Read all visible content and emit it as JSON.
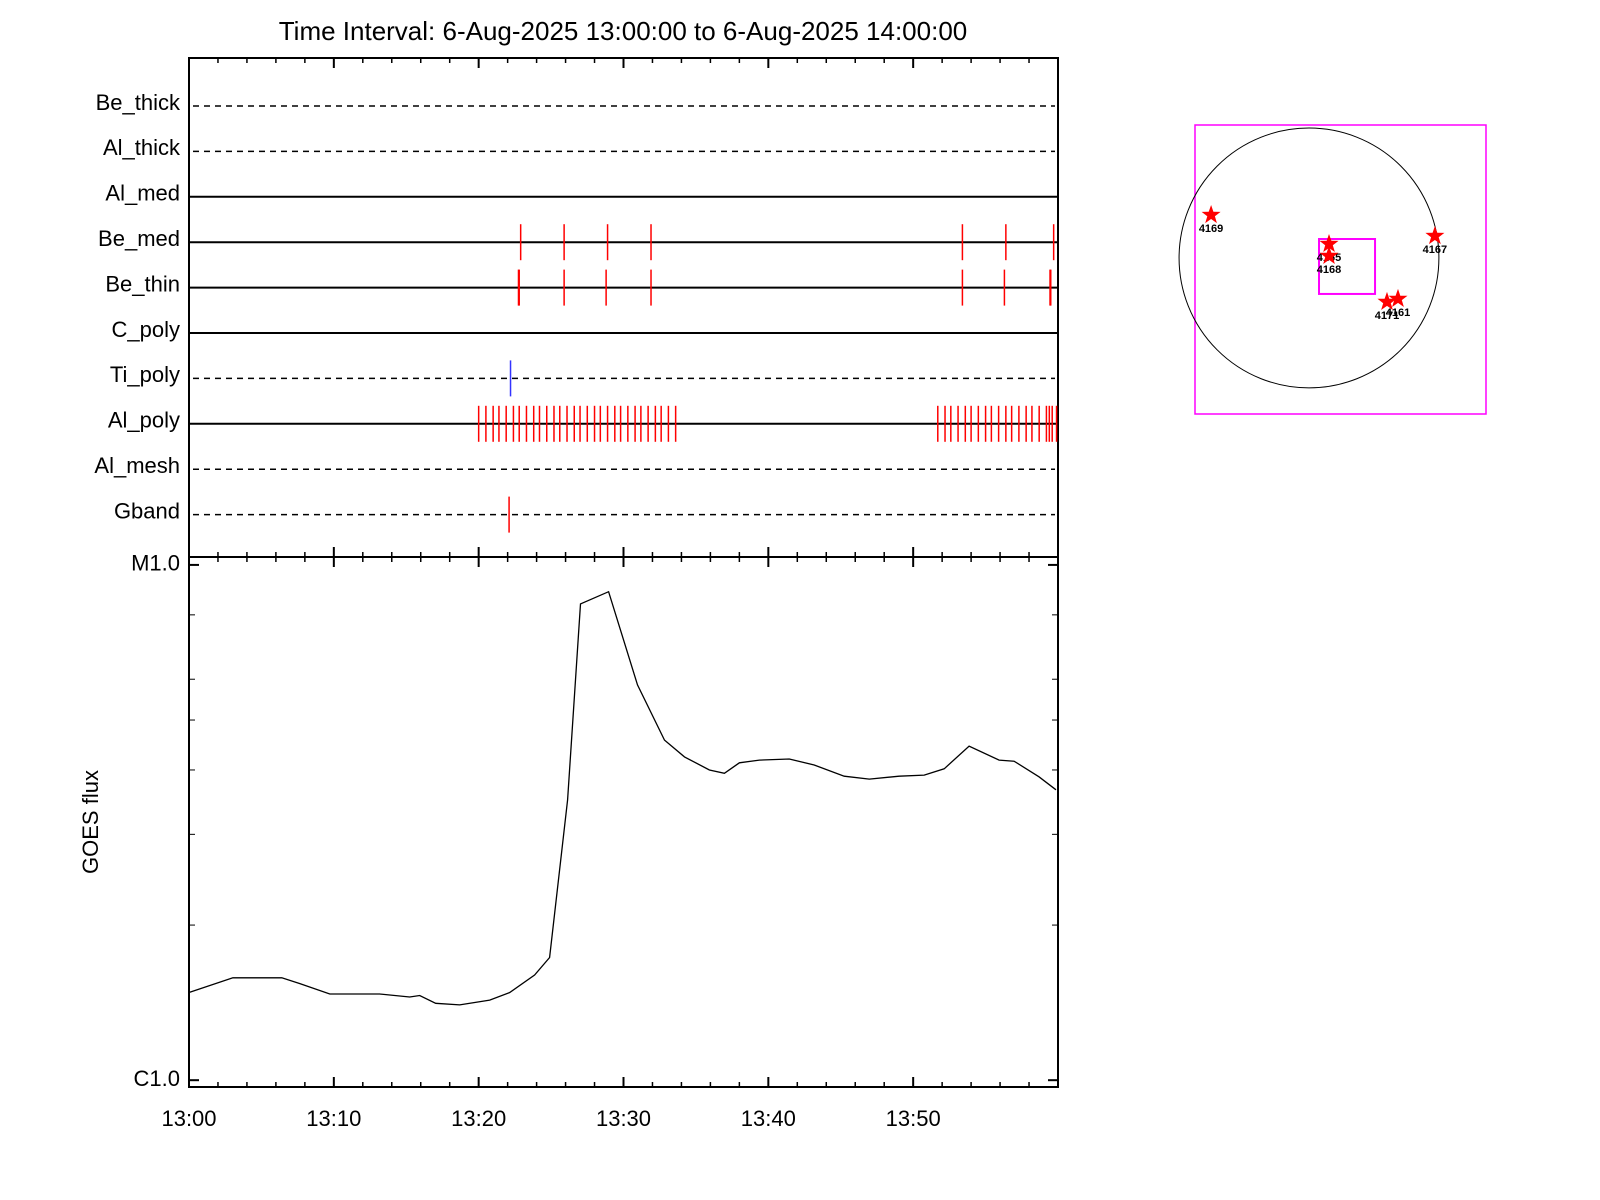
{
  "chart_data": [
    {
      "type": "timeline",
      "title": "Time Interval:  6-Aug-2025 13:00:00 to  6-Aug-2025 14:00:00",
      "xlim": [
        0,
        60
      ],
      "xticks": [
        0,
        10,
        20,
        30,
        40,
        50
      ],
      "xminor": [
        2,
        4,
        6,
        8,
        12,
        14,
        16,
        18,
        22,
        24,
        26,
        28,
        32,
        34,
        36,
        38,
        42,
        44,
        46,
        48,
        52,
        54,
        56,
        58
      ],
      "series": [
        {
          "name": "Be_thick",
          "line_style": "dashed",
          "color": "#ff0000",
          "values": []
        },
        {
          "name": "Al_thick",
          "line_style": "dashed",
          "color": "#ff0000",
          "values": []
        },
        {
          "name": "Al_med",
          "line_style": "solid",
          "color": "#ff0000",
          "values": []
        },
        {
          "name": "Be_med",
          "line_style": "solid",
          "color": "#ff0000",
          "values": [
            22.9,
            25.9,
            28.9,
            31.9,
            53.4,
            56.4,
            59.7
          ]
        },
        {
          "name": "Be_thin",
          "line_style": "solid",
          "color": "#ff0000",
          "values": [
            22.75,
            22.8,
            25.9,
            28.8,
            31.9,
            53.4,
            56.3,
            59.45,
            59.5
          ]
        },
        {
          "name": "C_poly",
          "line_style": "solid",
          "color": "#ff0000",
          "values": []
        },
        {
          "name": "Ti_poly",
          "line_style": "dashed",
          "color": "#3333ff",
          "values": [
            22.2
          ]
        },
        {
          "name": "Al_poly",
          "line_style": "solid",
          "color": "#ff0000",
          "values": [
            20.0,
            20.5,
            21.0,
            21.4,
            21.9,
            22.4,
            22.8,
            23.3,
            23.8,
            24.2,
            24.7,
            25.2,
            25.6,
            26.1,
            26.6,
            27.0,
            27.5,
            28.0,
            28.4,
            28.9,
            29.4,
            29.8,
            30.3,
            30.8,
            31.2,
            31.7,
            32.2,
            32.6,
            33.1,
            33.6,
            51.7,
            52.2,
            52.6,
            53.1,
            53.6,
            54.0,
            54.5,
            55.0,
            55.4,
            55.9,
            56.4,
            56.8,
            57.3,
            57.8,
            58.2,
            58.7,
            59.2,
            59.4,
            59.6,
            59.9
          ]
        },
        {
          "name": "Al_mesh",
          "line_style": "dashed",
          "color": "#ff0000",
          "values": []
        },
        {
          "name": "Gband",
          "line_style": "dashed",
          "color": "#ff0000",
          "values": [
            22.1
          ]
        }
      ]
    },
    {
      "type": "line",
      "ylabel": "GOES flux",
      "log_y": true,
      "color": "#000000",
      "xlim": [
        0,
        60
      ],
      "xticks": [
        {
          "value": 0,
          "label": "13:00"
        },
        {
          "value": 10,
          "label": "13:10"
        },
        {
          "value": 20,
          "label": "13:20"
        },
        {
          "value": 30,
          "label": "13:30"
        },
        {
          "value": 40,
          "label": "13:40"
        },
        {
          "value": 50,
          "label": "13:50"
        }
      ],
      "xminor": [
        2,
        4,
        6,
        8,
        12,
        14,
        16,
        18,
        22,
        24,
        26,
        28,
        32,
        34,
        36,
        38,
        42,
        44,
        46,
        48,
        52,
        54,
        56,
        58
      ],
      "ylim": [
        9.7e-07,
        1.036e-05
      ],
      "yticks": [
        {
          "value": 1e-06,
          "label": "C1.0"
        },
        {
          "value": 1e-05,
          "label": "M1.0"
        }
      ],
      "yminor": [
        2e-06,
        3e-06,
        4e-06,
        5e-06,
        6e-06,
        8e-06
      ],
      "x": [
        0,
        3.03,
        6.41,
        7.66,
        9.72,
        13.17,
        15.24,
        15.93,
        17.03,
        18.69,
        20.76,
        22.14,
        23.86,
        24.9,
        26.14,
        27.03,
        28.97,
        30.97,
        32.83,
        34.21,
        35.93,
        36.97,
        38.0,
        39.38,
        41.45,
        43.17,
        45.24,
        46.97,
        49.03,
        50.76,
        52.14,
        53.86,
        55.93,
        56.97,
        58.69,
        59.86
      ],
      "values": [
        1.48e-06,
        1.58e-06,
        1.58e-06,
        1.54e-06,
        1.47e-06,
        1.47e-06,
        1.45e-06,
        1.46e-06,
        1.41e-06,
        1.4e-06,
        1.43e-06,
        1.48e-06,
        1.6e-06,
        1.73e-06,
        3.5e-06,
        8.4e-06,
        8.87e-06,
        5.85e-06,
        4.57e-06,
        4.24e-06,
        4e-06,
        3.94e-06,
        4.13e-06,
        4.18e-06,
        4.2e-06,
        4.09e-06,
        3.89e-06,
        3.84e-06,
        3.89e-06,
        3.91e-06,
        4.02e-06,
        4.45e-06,
        4.18e-06,
        4.16e-06,
        3.88e-06,
        3.66e-06
      ]
    },
    {
      "type": "map",
      "xlim": [
        -830,
        1289
      ],
      "ylim": [
        -1136,
        968
      ],
      "sun_radius": 946,
      "frame_color": "#ff00ff",
      "marker_color": "#ff0000",
      "fov": {
        "xlim": [
          73,
          481
        ],
        "ylim": [
          -262,
          138
        ]
      },
      "points": [
        {
          "name": "4169",
          "x": -713,
          "y": 313
        },
        {
          "name": "4165",
          "x": 146,
          "y": 102
        },
        {
          "name": "4168",
          "x": 146,
          "y": 15
        },
        {
          "name": "4167",
          "x": 917,
          "y": 160
        },
        {
          "name": "4171",
          "x": 568,
          "y": -320
        },
        {
          "name": "4161",
          "x": 648,
          "y": -298
        }
      ]
    }
  ]
}
